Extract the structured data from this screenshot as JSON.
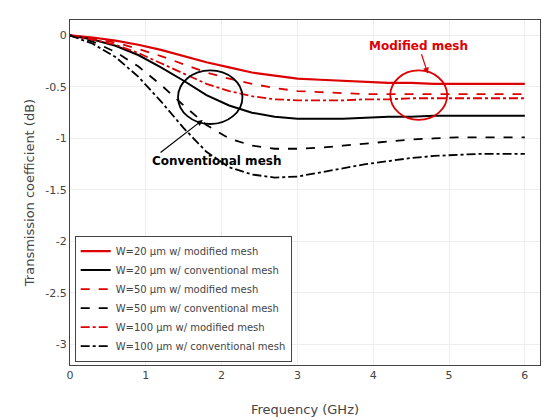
{
  "chart_data": {
    "type": "line",
    "xlabel": "Frequency (GHz)",
    "ylabel": "Transmission coefficient (dB)",
    "x": [
      0,
      0.3,
      0.6,
      0.9,
      1.2,
      1.5,
      1.8,
      2.1,
      2.4,
      2.7,
      3.0,
      3.3,
      3.6,
      3.9,
      4.2,
      4.5,
      4.8,
      5.1,
      5.4,
      5.7,
      6.0
    ],
    "series": [
      {
        "name": "W=20 μm w/ modified mesh",
        "color": "#dd0000",
        "line_style": "solid",
        "values": [
          0,
          -0.02,
          -0.05,
          -0.09,
          -0.14,
          -0.2,
          -0.26,
          -0.31,
          -0.36,
          -0.39,
          -0.42,
          -0.43,
          -0.44,
          -0.45,
          -0.46,
          -0.46,
          -0.47,
          -0.47,
          -0.47,
          -0.47,
          -0.47
        ]
      },
      {
        "name": "W=20 μm w/ conventional mesh",
        "color": "#000000",
        "line_style": "solid",
        "values": [
          0,
          -0.04,
          -0.1,
          -0.19,
          -0.31,
          -0.44,
          -0.58,
          -0.68,
          -0.75,
          -0.79,
          -0.81,
          -0.81,
          -0.81,
          -0.8,
          -0.79,
          -0.79,
          -0.78,
          -0.78,
          -0.78,
          -0.78,
          -0.78
        ]
      },
      {
        "name": "W=50 μm w/ modified mesh",
        "color": "#dd0000",
        "line_style": "dash",
        "values": [
          0,
          -0.03,
          -0.07,
          -0.13,
          -0.2,
          -0.28,
          -0.36,
          -0.42,
          -0.47,
          -0.51,
          -0.54,
          -0.55,
          -0.56,
          -0.57,
          -0.57,
          -0.57,
          -0.57,
          -0.57,
          -0.57,
          -0.57,
          -0.57
        ]
      },
      {
        "name": "W=50 μm w/ conventional mesh",
        "color": "#000000",
        "line_style": "dash",
        "values": [
          0,
          -0.06,
          -0.16,
          -0.3,
          -0.48,
          -0.68,
          -0.87,
          -1.0,
          -1.07,
          -1.1,
          -1.1,
          -1.09,
          -1.07,
          -1.05,
          -1.03,
          -1.01,
          -1.0,
          -0.99,
          -0.99,
          -0.99,
          -0.99
        ]
      },
      {
        "name": "W=100 μm w/ modified mesh",
        "color": "#dd0000",
        "line_style": "dashdot",
        "values": [
          0,
          -0.04,
          -0.09,
          -0.17,
          -0.27,
          -0.37,
          -0.47,
          -0.54,
          -0.59,
          -0.62,
          -0.63,
          -0.63,
          -0.63,
          -0.62,
          -0.62,
          -0.61,
          -0.61,
          -0.61,
          -0.61,
          -0.61,
          -0.61
        ]
      },
      {
        "name": "W=100 μm w/ conventional mesh",
        "color": "#000000",
        "line_style": "dashdot",
        "values": [
          0,
          -0.08,
          -0.21,
          -0.4,
          -0.64,
          -0.9,
          -1.13,
          -1.28,
          -1.35,
          -1.38,
          -1.37,
          -1.33,
          -1.29,
          -1.25,
          -1.22,
          -1.19,
          -1.17,
          -1.16,
          -1.15,
          -1.15,
          -1.15
        ]
      }
    ],
    "xlim": [
      0,
      6.2
    ],
    "ylim": [
      -3.2,
      0.15
    ],
    "xticks": [
      0,
      1,
      2,
      3,
      4,
      5,
      6
    ],
    "yticks": [
      0,
      -0.5,
      -1,
      -1.5,
      -2,
      -2.5,
      -3
    ],
    "grid": true,
    "legend": "lower left",
    "annotations": [
      "Conventional mesh",
      "Modified mesh"
    ]
  }
}
